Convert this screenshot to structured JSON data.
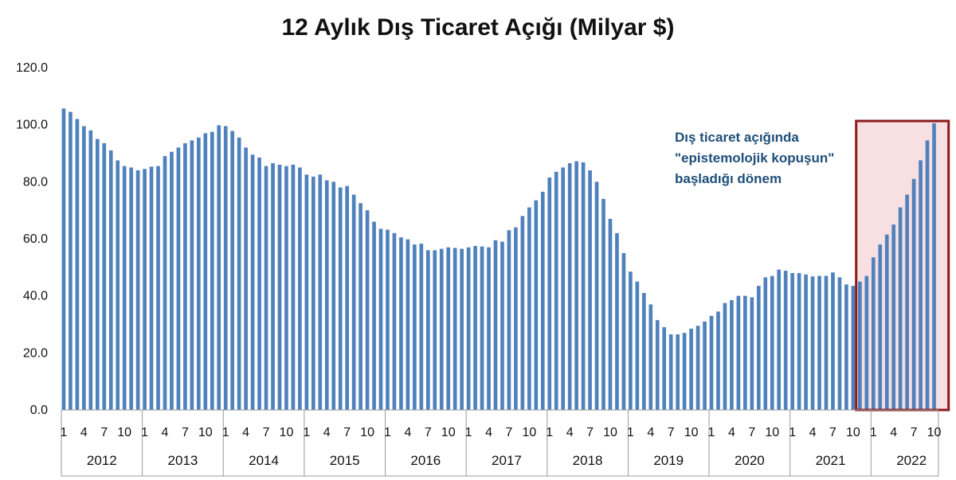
{
  "chart_data": {
    "type": "bar",
    "title": "12 Aylık Dış Ticaret Açığı (Milyar $)",
    "xlabel": "",
    "ylabel": "",
    "ylim": [
      0,
      120
    ],
    "y_ticks": [
      "0.0",
      "20.0",
      "40.0",
      "60.0",
      "80.0",
      "100.0",
      "120.0"
    ],
    "grid": false,
    "bar_color": "#4f81bd",
    "month_ticks": [
      "1",
      "4",
      "7",
      "10"
    ],
    "years": [
      "2012",
      "2013",
      "2014",
      "2015",
      "2016",
      "2017",
      "2018",
      "2019",
      "2020",
      "2021",
      "2022"
    ],
    "values": [
      105.7,
      104.5,
      102.0,
      99.5,
      98.0,
      95.0,
      93.5,
      91.0,
      87.5,
      85.5,
      85.0,
      84.0,
      84.5,
      85.3,
      85.5,
      89.0,
      90.5,
      92.0,
      93.5,
      94.5,
      95.5,
      97.0,
      97.5,
      99.8,
      99.5,
      97.8,
      95.5,
      92.0,
      89.5,
      88.5,
      85.5,
      86.5,
      86.0,
      85.5,
      86.0,
      85.0,
      82.5,
      81.8,
      82.5,
      80.5,
      80.0,
      78.0,
      78.5,
      75.5,
      72.5,
      70.0,
      66.0,
      63.5,
      63.2,
      62.0,
      60.5,
      59.8,
      58.0,
      58.3,
      56.0,
      56.0,
      56.5,
      57.0,
      56.8,
      56.5,
      57.0,
      57.5,
      57.3,
      57.0,
      59.5,
      59.0,
      63.0,
      64.0,
      68.0,
      71.0,
      73.5,
      76.5,
      81.5,
      83.5,
      85.0,
      86.5,
      87.2,
      86.8,
      84.0,
      80.0,
      74.0,
      67.0,
      62.0,
      55.0,
      48.5,
      45.0,
      41.0,
      37.0,
      31.5,
      29.0,
      26.5,
      26.5,
      27.0,
      28.5,
      29.5,
      31.0,
      33.0,
      34.5,
      37.5,
      38.5,
      40.0,
      40.0,
      39.5,
      43.5,
      46.5,
      47.0,
      49.2,
      48.8,
      48.0,
      48.0,
      47.5,
      46.8,
      47.0,
      47.0,
      48.2,
      46.5,
      44.0,
      43.5,
      45.0,
      47.0,
      53.5,
      58.0,
      61.5,
      65.0,
      71.0,
      75.5,
      81.0,
      87.5,
      94.5,
      100.5
    ],
    "highlight": {
      "start_index": 118,
      "end_index": 131
    },
    "highlight_fill": "#f7dfe2",
    "highlight_border": "#8b1a1a",
    "annotation": "Dış ticaret açığında \"epistemolojik kopuşun\" başladığı dönem",
    "annotation_color": "#1f4e79"
  }
}
